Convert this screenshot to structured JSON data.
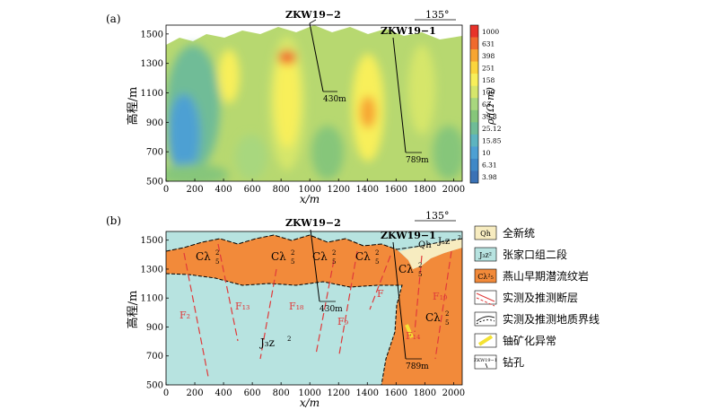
{
  "panel_a": {
    "label": "(a)",
    "direction": "135°",
    "y_axis_label": "高程/m",
    "x_axis_label": "x/m",
    "x_ticks": [
      "0",
      "200",
      "400",
      "600",
      "800",
      "1000",
      "1200",
      "1400",
      "1600",
      "1800",
      "2000"
    ],
    "y_ticks": [
      "1500",
      "1300",
      "1100",
      "900",
      "700",
      "500"
    ],
    "boreholes": [
      {
        "name": "ZKW19−2",
        "depth": "430m"
      },
      {
        "name": "ZKW19−1",
        "depth": "789m"
      }
    ],
    "colorbar_title": "ρ/(Ω·m)",
    "colorbar_ticks": [
      "1000",
      "631",
      "398",
      "251",
      "158",
      "100",
      "63",
      "39.8",
      "25.12",
      "15.85",
      "10",
      "6.31",
      "3.98"
    ],
    "colorbar_colors": [
      "#e8322a",
      "#f06a2e",
      "#f7a531",
      "#fbd53c",
      "#f8ef5a",
      "#d6e66b",
      "#a8d77e",
      "#86c67a",
      "#6fbc97",
      "#5db4c0",
      "#4ea0d3",
      "#3f88c7",
      "#3a72b6"
    ]
  },
  "panel_b": {
    "label": "(b)",
    "direction": "135°",
    "y_axis_label": "高程/m",
    "x_axis_label": "x/m",
    "x_ticks": [
      "0",
      "200",
      "400",
      "600",
      "800",
      "1000",
      "1200",
      "1400",
      "1600",
      "1800",
      "2000"
    ],
    "y_ticks": [
      "1500",
      "1300",
      "1100",
      "900",
      "700",
      "500"
    ],
    "boreholes": [
      {
        "name": "ZKW19−2",
        "depth": "430m"
      },
      {
        "name": "ZKW19−1",
        "depth": "789m"
      }
    ],
    "unit_labels": {
      "c_main": "Cλ",
      "sup": "2",
      "sub": "5",
      "j3": "J₃z",
      "j3_sup": "2",
      "qh": "Qh"
    },
    "faults": [
      "F₂",
      "F₁₃",
      "F₁₈",
      "F₉",
      "F",
      "F₁₉",
      "F₁₄"
    ]
  },
  "legend": [
    {
      "swatch": "Qh",
      "text": "全新统"
    },
    {
      "swatch": "J₃z²",
      "text": "张家口组二段"
    },
    {
      "swatch": "Cλ²₅",
      "text": "燕山早期潜流纹岩"
    },
    {
      "swatch": "",
      "text": "实测及推测断层"
    },
    {
      "swatch": "",
      "text": "实测及推测地质界线"
    },
    {
      "swatch": "",
      "text": "铀矿化异常"
    },
    {
      "swatch": "ZKW19−1",
      "text": "钻孔"
    }
  ],
  "colors": {
    "orange": "#f28a3a",
    "cyan": "#b7e3e0",
    "qh": "#f7ecc0",
    "fault": "#e03a3a",
    "uranium": "#f4e233"
  }
}
